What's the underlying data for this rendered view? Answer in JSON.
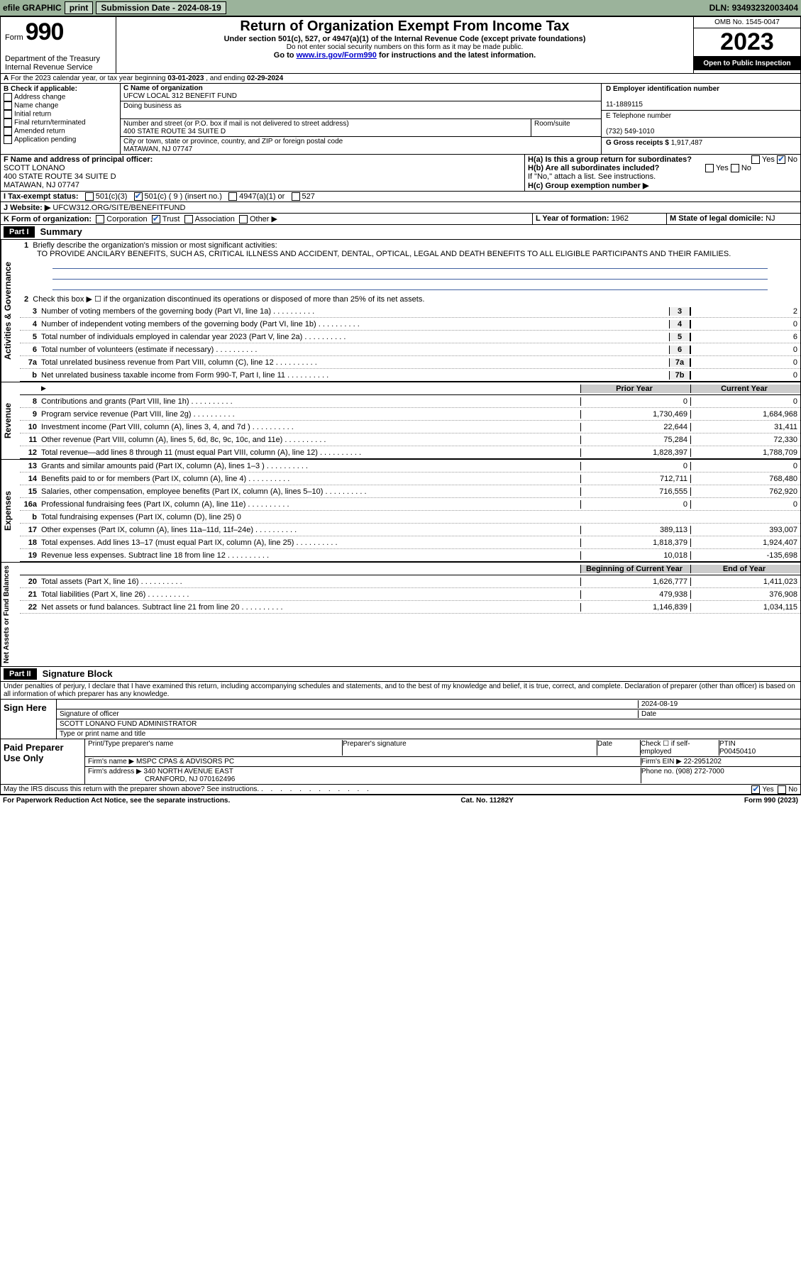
{
  "topbar": {
    "efile": "efile GRAPHIC",
    "print": "print",
    "subdate_label": "Submission Date - ",
    "subdate": "2024-08-19",
    "dln_label": "DLN: ",
    "dln": "93493232003404"
  },
  "header": {
    "form_label": "Form",
    "form_no": "990",
    "dept": "Department of the Treasury\nInternal Revenue Service",
    "title": "Return of Organization Exempt From Income Tax",
    "sub1": "Under section 501(c), 527, or 4947(a)(1) of the Internal Revenue Code (except private foundations)",
    "sub2": "Do not enter social security numbers on this form as it may be made public.",
    "sub3_pre": "Go to ",
    "sub3_link": "www.irs.gov/Form990",
    "sub3_post": " for instructions and the latest information.",
    "omb": "OMB No. 1545-0047",
    "year": "2023",
    "open": "Open to Public Inspection"
  },
  "a": {
    "text": "For the 2023 calendar year, or tax year beginning ",
    "begin": "03-01-2023",
    "mid": " , and ending ",
    "end": "02-29-2024"
  },
  "b": {
    "label": "B Check if applicable:",
    "items": [
      "Address change",
      "Name change",
      "Initial return",
      "Final return/terminated",
      "Amended return",
      "Application pending"
    ]
  },
  "c": {
    "name_label": "C Name of organization",
    "name": "UFCW LOCAL 312 BENEFIT FUND",
    "dba_label": "Doing business as",
    "street_label": "Number and street (or P.O. box if mail is not delivered to street address)",
    "street": "400 STATE ROUTE 34 SUITE D",
    "room_label": "Room/suite",
    "city_label": "City or town, state or province, country, and ZIP or foreign postal code",
    "city": "MATAWAN, NJ  07747"
  },
  "d": {
    "label": "D Employer identification number",
    "value": "11-1889115"
  },
  "e": {
    "label": "E Telephone number",
    "value": "(732) 549-1010"
  },
  "g": {
    "label": "G Gross receipts $ ",
    "value": "1,917,487"
  },
  "f": {
    "label": "F  Name and address of principal officer:",
    "name": "SCOTT LONANO",
    "addr1": "400 STATE ROUTE 34 SUITE D",
    "addr2": "MATAWAN, NJ  07747"
  },
  "h": {
    "a_label": "H(a)  Is this a group return for subordinates?",
    "yes": "Yes",
    "no": "No",
    "b_label": "H(b)  Are all subordinates included?",
    "b_note": "If \"No,\" attach a list. See instructions.",
    "c_label": "H(c)  Group exemption number ▶"
  },
  "i": {
    "label": "I    Tax-exempt status:",
    "c3": "501(c)(3)",
    "c": "501(c) ( 9 ) (insert no.)",
    "a1": "4947(a)(1) or",
    "s527": "527"
  },
  "j": {
    "label": "J   Website: ▶ ",
    "value": "UFCW312.ORG/SITE/BENEFITFUND"
  },
  "k": {
    "label": "K Form of organization:",
    "corp": "Corporation",
    "trust": "Trust",
    "assoc": "Association",
    "other": "Other ▶"
  },
  "l": {
    "label": "L Year of formation: ",
    "value": "1962"
  },
  "m": {
    "label": "M State of legal domicile: ",
    "value": "NJ"
  },
  "part1": {
    "title": "Part I",
    "label": "Summary",
    "l1a": "Briefly describe the organization's mission or most significant activities:",
    "l1b": "TO PROVIDE ANCILARY BENEFITS, SUCH AS, CRITICAL ILLNESS AND ACCIDENT, DENTAL, OPTICAL, LEGAL AND DEATH BENEFITS TO ALL ELIGIBLE PARTICIPANTS AND THEIR FAMILIES.",
    "l2": "Check this box ▶ ☐ if the organization discontinued its operations or disposed of more than 25% of its net assets.",
    "lines_ag": [
      {
        "num": "3",
        "desc": "Number of voting members of the governing body (Part VI, line 1a)",
        "box": "3",
        "val": "2"
      },
      {
        "num": "4",
        "desc": "Number of independent voting members of the governing body (Part VI, line 1b)",
        "box": "4",
        "val": "0"
      },
      {
        "num": "5",
        "desc": "Total number of individuals employed in calendar year 2023 (Part V, line 2a)",
        "box": "5",
        "val": "6"
      },
      {
        "num": "6",
        "desc": "Total number of volunteers (estimate if necessary)",
        "box": "6",
        "val": "0"
      },
      {
        "num": "7a",
        "desc": "Total unrelated business revenue from Part VIII, column (C), line 12",
        "box": "7a",
        "val": "0"
      },
      {
        "num": "b",
        "desc": "Net unrelated business taxable income from Form 990-T, Part I, line 11",
        "box": "7b",
        "val": "0"
      }
    ],
    "col_prior": "Prior Year",
    "col_current": "Current Year",
    "col_begin": "Beginning of Current Year",
    "col_end": "End of Year",
    "vlabel_ag": "Activities & Governance",
    "vlabel_rev": "Revenue",
    "vlabel_exp": "Expenses",
    "vlabel_net": "Net Assets or Fund Balances",
    "rev": [
      {
        "num": "8",
        "desc": "Contributions and grants (Part VIII, line 1h)",
        "p": "0",
        "c": "0"
      },
      {
        "num": "9",
        "desc": "Program service revenue (Part VIII, line 2g)",
        "p": "1,730,469",
        "c": "1,684,968"
      },
      {
        "num": "10",
        "desc": "Investment income (Part VIII, column (A), lines 3, 4, and 7d )",
        "p": "22,644",
        "c": "31,411"
      },
      {
        "num": "11",
        "desc": "Other revenue (Part VIII, column (A), lines 5, 6d, 8c, 9c, 10c, and 11e)",
        "p": "75,284",
        "c": "72,330"
      },
      {
        "num": "12",
        "desc": "Total revenue—add lines 8 through 11 (must equal Part VIII, column (A), line 12)",
        "p": "1,828,397",
        "c": "1,788,709"
      }
    ],
    "exp": [
      {
        "num": "13",
        "desc": "Grants and similar amounts paid (Part IX, column (A), lines 1–3 )",
        "p": "0",
        "c": "0"
      },
      {
        "num": "14",
        "desc": "Benefits paid to or for members (Part IX, column (A), line 4)",
        "p": "712,711",
        "c": "768,480"
      },
      {
        "num": "15",
        "desc": "Salaries, other compensation, employee benefits (Part IX, column (A), lines 5–10)",
        "p": "716,555",
        "c": "762,920"
      },
      {
        "num": "16a",
        "desc": "Professional fundraising fees (Part IX, column (A), line 11e)",
        "p": "0",
        "c": "0"
      },
      {
        "num": "b",
        "desc": "Total fundraising expenses (Part IX, column (D), line 25) 0",
        "p": "",
        "c": "",
        "grey": true
      },
      {
        "num": "17",
        "desc": "Other expenses (Part IX, column (A), lines 11a–11d, 11f–24e)",
        "p": "389,113",
        "c": "393,007"
      },
      {
        "num": "18",
        "desc": "Total expenses. Add lines 13–17 (must equal Part IX, column (A), line 25)",
        "p": "1,818,379",
        "c": "1,924,407"
      },
      {
        "num": "19",
        "desc": "Revenue less expenses. Subtract line 18 from line 12",
        "p": "10,018",
        "c": "-135,698"
      }
    ],
    "net": [
      {
        "num": "20",
        "desc": "Total assets (Part X, line 16)",
        "p": "1,626,777",
        "c": "1,411,023"
      },
      {
        "num": "21",
        "desc": "Total liabilities (Part X, line 26)",
        "p": "479,938",
        "c": "376,908"
      },
      {
        "num": "22",
        "desc": "Net assets or fund balances. Subtract line 21 from line 20",
        "p": "1,146,839",
        "c": "1,034,115"
      }
    ]
  },
  "part2": {
    "title": "Part II",
    "label": "Signature Block",
    "decl": "Under penalties of perjury, I declare that I have examined this return, including accompanying schedules and statements, and to the best of my knowledge and belief, it is true, correct, and complete. Declaration of preparer (other than officer) is based on all information of which preparer has any knowledge."
  },
  "sign": {
    "here": "Sign Here",
    "sig_label": "Signature of officer",
    "date_label": "Date",
    "date": "2024-08-19",
    "name": "SCOTT LONANO  FUND ADMINISTRATOR",
    "type_label": "Type or print name and title"
  },
  "paid": {
    "label": "Paid Preparer Use Only",
    "pt_label": "Print/Type preparer's name",
    "ps_label": "Preparer's signature",
    "d_label": "Date",
    "se_label": "Check ☐ if self-employed",
    "ptin_label": "PTIN",
    "ptin": "P00450410",
    "fn_label": "Firm's name    ▶ ",
    "fn": "MSPC CPAS & ADVISORS PC",
    "fe_label": "Firm's EIN ▶ ",
    "fe": "22-2951202",
    "fa_label": "Firm's address ▶ ",
    "fa1": "340 NORTH AVENUE EAST",
    "fa2": "CRANFORD, NJ  070162496",
    "ph_label": "Phone no. ",
    "ph": "(908) 272-7000"
  },
  "discuss": {
    "text": "May the IRS discuss this return with the preparer shown above? See instructions.",
    "yes": "Yes",
    "no": "No"
  },
  "footer": {
    "left": "For Paperwork Reduction Act Notice, see the separate instructions.",
    "cat": "Cat. No. 11282Y",
    "right": "Form 990 (2023)"
  }
}
